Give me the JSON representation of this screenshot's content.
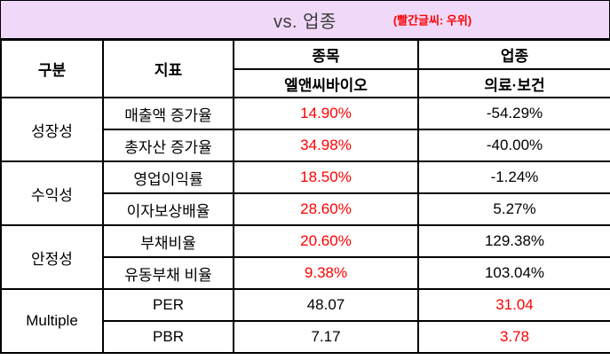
{
  "banner": {
    "title": "vs. 업종",
    "note": "(빨간글씨:  우위)"
  },
  "colors": {
    "accent_red": "#ff0000",
    "banner_bg": "#f0d8f8",
    "border": "#000000"
  },
  "table": {
    "headers": {
      "category": "구분",
      "indicator": "지표",
      "stock_label": "종목",
      "stock_name": "엘앤씨바이오",
      "industry_label": "업종",
      "industry_name": "의료·보건"
    },
    "groups": [
      {
        "name": "성장성",
        "rows": [
          {
            "indicator": "매출액 증가율",
            "stock": "14.90%",
            "stock_red": true,
            "industry": "-54.29%",
            "industry_red": false
          },
          {
            "indicator": "총자산 증가율",
            "stock": "34.98%",
            "stock_red": true,
            "industry": "-40.00%",
            "industry_red": false
          }
        ]
      },
      {
        "name": "수익성",
        "rows": [
          {
            "indicator": "영업이익률",
            "stock": "18.50%",
            "stock_red": true,
            "industry": "-1.24%",
            "industry_red": false
          },
          {
            "indicator": "이자보상배율",
            "stock": "28.60%",
            "stock_red": true,
            "industry": "5.27%",
            "industry_red": false
          }
        ]
      },
      {
        "name": "안정성",
        "rows": [
          {
            "indicator": "부채비율",
            "stock": "20.60%",
            "stock_red": true,
            "industry": "129.38%",
            "industry_red": false
          },
          {
            "indicator": "유동부채 비율",
            "stock": "9.38%",
            "stock_red": true,
            "industry": "103.04%",
            "industry_red": false
          }
        ]
      },
      {
        "name": "Multiple",
        "rows": [
          {
            "indicator": "PER",
            "stock": "48.07",
            "stock_red": false,
            "industry": "31.04",
            "industry_red": true
          },
          {
            "indicator": "PBR",
            "stock": "7.17",
            "stock_red": false,
            "industry": "3.78",
            "industry_red": true
          }
        ]
      }
    ]
  }
}
